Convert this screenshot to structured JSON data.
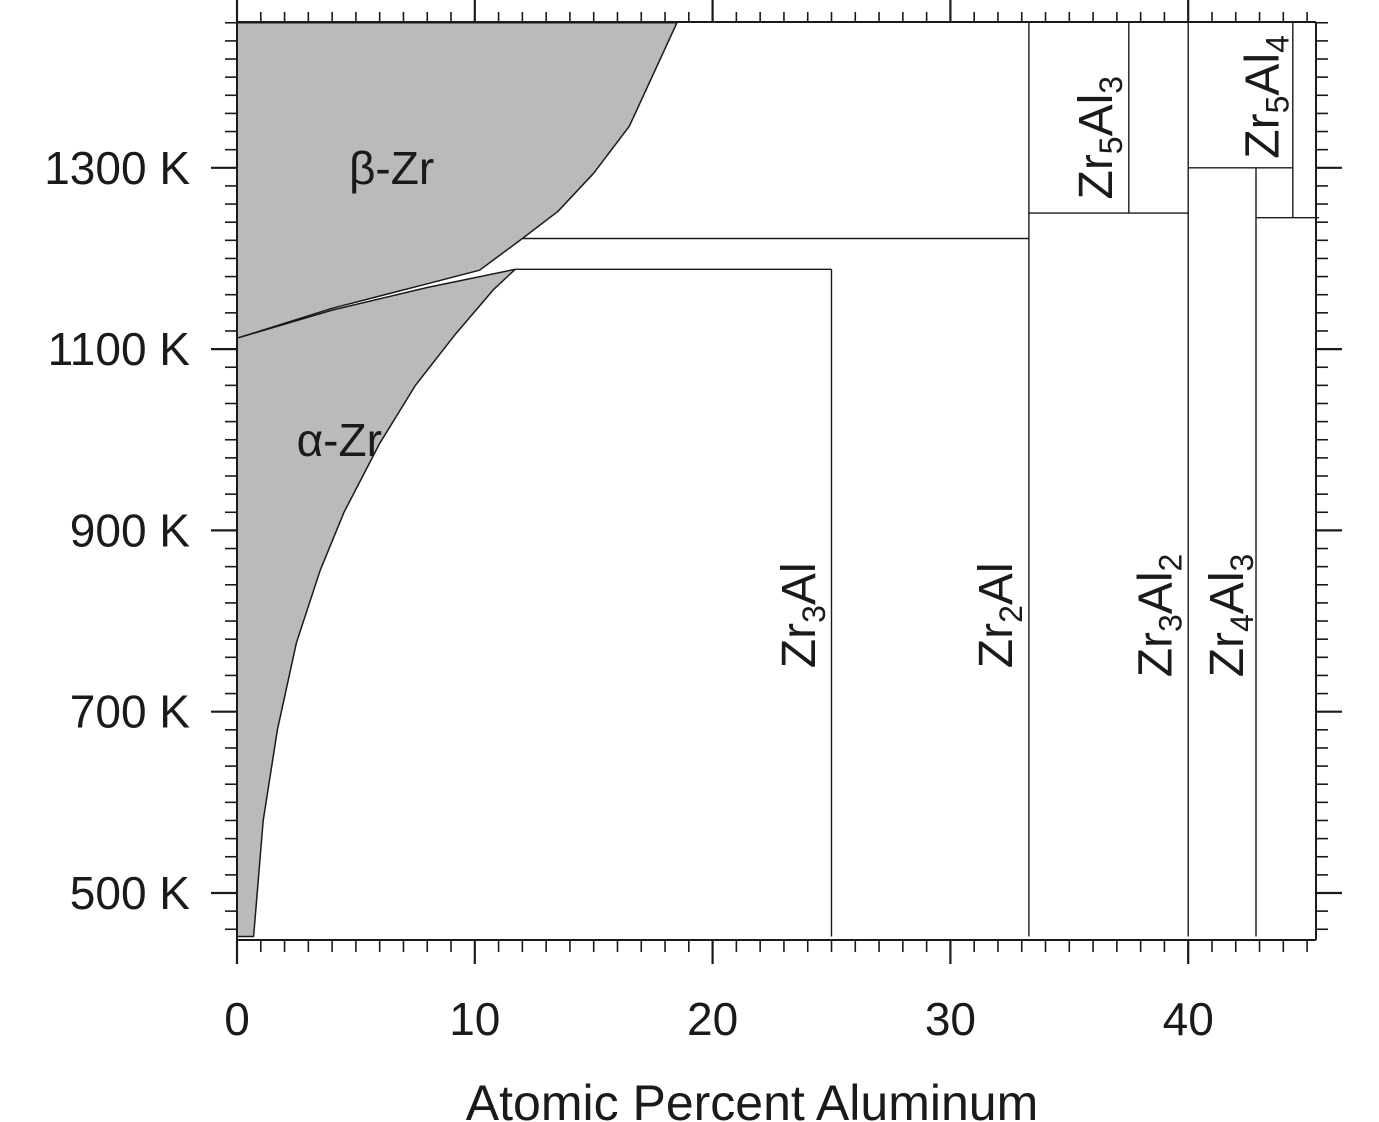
{
  "chart_data": {
    "type": "phase-diagram",
    "xlabel": "Atomic Percent Aluminum",
    "ylabel": "",
    "xlim": [
      0,
      45.5
    ],
    "ylim": [
      450,
      1460
    ],
    "x_ticks": [
      0,
      10,
      20,
      30,
      40
    ],
    "x_tick_labels": [
      "0",
      "10",
      "20",
      "30",
      "40"
    ],
    "y_ticks": [
      500,
      700,
      900,
      1100,
      1300
    ],
    "y_tick_labels": [
      "500 K",
      "700 K",
      "900 K",
      "1100 K",
      "1300 K"
    ],
    "grid": false,
    "fill_color": "#bababa",
    "line_color": "#1a1a1a",
    "regions": [
      {
        "label": "β-Zr",
        "fill": "#bababa",
        "boundary": [
          [
            0,
            1112
          ],
          [
            4,
            1145
          ],
          [
            8,
            1172
          ],
          [
            10.2,
            1187
          ],
          [
            12,
            1222
          ],
          [
            13.5,
            1252
          ],
          [
            15,
            1294
          ],
          [
            16.5,
            1346
          ],
          [
            18.5,
            1460
          ],
          [
            0,
            1460
          ]
        ]
      },
      {
        "label": "α-Zr",
        "fill": "#bababa",
        "boundary": [
          [
            0,
            1112
          ],
          [
            4,
            1143
          ],
          [
            8,
            1168
          ],
          [
            11.7,
            1188
          ],
          [
            10.8,
            1166
          ],
          [
            9.2,
            1117
          ],
          [
            7.5,
            1060
          ],
          [
            6,
            996
          ],
          [
            4.5,
            920
          ],
          [
            3.5,
            856
          ],
          [
            2.5,
            776
          ],
          [
            1.7,
            680
          ],
          [
            1.1,
            580
          ],
          [
            0.7,
            452
          ],
          [
            0,
            452
          ]
        ]
      }
    ],
    "lines": [
      [
        [
          11.7,
          1188
        ],
        [
          25.0,
          1188
        ]
      ],
      [
        [
          12.0,
          1222
        ],
        [
          33.3,
          1222
        ]
      ],
      [
        [
          25.0,
          452
        ],
        [
          25.0,
          1188
        ]
      ],
      [
        [
          33.3,
          452
        ],
        [
          33.3,
          1460
        ]
      ],
      [
        [
          33.3,
          1250
        ],
        [
          40.0,
          1250
        ]
      ],
      [
        [
          37.5,
          1250
        ],
        [
          37.5,
          1460
        ]
      ],
      [
        [
          40.0,
          452
        ],
        [
          40.0,
          1460
        ]
      ],
      [
        [
          40.0,
          1300
        ],
        [
          44.4,
          1300
        ]
      ],
      [
        [
          42.85,
          452
        ],
        [
          42.85,
          1300
        ]
      ],
      [
        [
          42.85,
          1245
        ],
        [
          45.5,
          1245
        ]
      ],
      [
        [
          44.4,
          1245
        ],
        [
          44.4,
          1460
        ]
      ]
    ],
    "region_labels": [
      {
        "text": "β-Zr",
        "x": 6.5,
        "y": 1300
      },
      {
        "text": "α-Zr",
        "x": 4.3,
        "y": 1000
      }
    ],
    "phase_labels": [
      {
        "parts": [
          [
            "Zr",
            ""
          ],
          [
            "3",
            "sub"
          ],
          [
            "Al",
            ""
          ]
        ],
        "x": 24.3,
        "y": 748
      },
      {
        "parts": [
          [
            "Zr",
            ""
          ],
          [
            "2",
            "sub"
          ],
          [
            "Al",
            ""
          ]
        ],
        "x": 32.6,
        "y": 748
      },
      {
        "parts": [
          [
            "Zr",
            ""
          ],
          [
            "3",
            "sub"
          ],
          [
            "Al",
            ""
          ],
          [
            "2",
            "sub"
          ]
        ],
        "x": 39.3,
        "y": 738
      },
      {
        "parts": [
          [
            "Zr",
            ""
          ],
          [
            "4",
            "sub"
          ],
          [
            "Al",
            ""
          ],
          [
            "3",
            "sub"
          ]
        ],
        "x": 42.3,
        "y": 738
      },
      {
        "parts": [
          [
            "Zr",
            ""
          ],
          [
            "5",
            "sub"
          ],
          [
            "Al",
            ""
          ],
          [
            "3",
            "sub"
          ]
        ],
        "x": 36.8,
        "y": 1265
      },
      {
        "parts": [
          [
            "Zr",
            ""
          ],
          [
            "5",
            "sub"
          ],
          [
            "Al",
            ""
          ],
          [
            "4",
            "sub"
          ]
        ],
        "x": 43.8,
        "y": 1310
      }
    ]
  }
}
